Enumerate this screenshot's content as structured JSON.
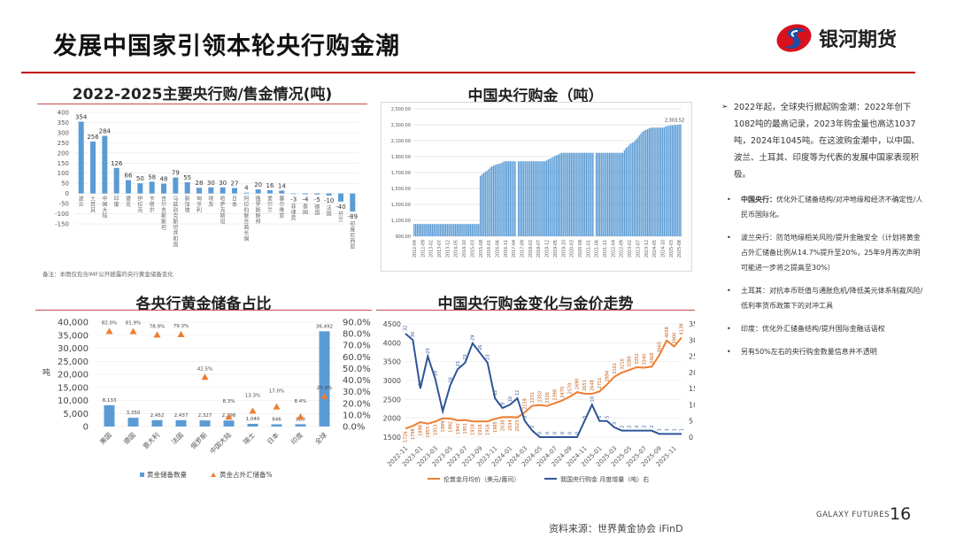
{
  "header": {
    "title": "发展中国家引领本轮央行购金潮",
    "logo_text": "银河期货",
    "logo_colors": [
      "#d7121d",
      "#1d4fa3"
    ]
  },
  "charts": {
    "c1_title": "2022-2025主要央行购/售金情况(吨)",
    "c1_note": "备注：本图仅包含IMF公开披露的央行黄金储备变化",
    "c2_title": "中国央行购金（吨）",
    "c3_title": "各央行黄金储备占比",
    "c4_title": "中国央行购金变化与金价走势"
  },
  "chart_data": [
    {
      "type": "bar",
      "title": "2022-2025主要央行购/售金情况(吨)",
      "categories": [
        "波兰",
        "土耳其",
        "中国大陆",
        "印度",
        "捷克",
        "伊拉克",
        "卡塔尔",
        "吉尔吉斯斯坦",
        "乌兹别克斯坦共和国",
        "新加坡",
        "匈牙利",
        "埃及",
        "哈萨克斯坦",
        "日本",
        "阿拉伯联合酋长国",
        "俄罗斯联邦",
        "爱尔兰",
        "塞尔维亚",
        "菲律宾",
        "泰国",
        "德国",
        "法国",
        "芬兰",
        "印度尼西亚"
      ],
      "values": [
        354,
        256,
        284,
        126,
        66,
        50,
        58,
        48,
        79,
        55,
        28,
        30,
        30,
        27,
        4,
        20,
        16,
        14,
        -3,
        -4,
        -5,
        -10,
        -40,
        -89
      ],
      "ylim": [
        -150,
        400
      ],
      "yticks": [
        -150,
        -100,
        -50,
        0,
        50,
        100,
        150,
        200,
        250,
        300,
        350,
        400
      ],
      "grid": true,
      "color": "#5b9bd5"
    },
    {
      "type": "bar",
      "title": "中国央行购金（吨）",
      "x_start": "2012-04",
      "x_end": "2025-09",
      "xtick_labels": [
        "2012-04",
        "2012-09",
        "2013-02",
        "2013-07",
        "2013-12",
        "2014-05",
        "2014-10",
        "2015-03",
        "2015-08",
        "2016-01",
        "2016-06",
        "2016-11",
        "2017-04",
        "2017-09",
        "2018-02",
        "2018-07",
        "2018-12",
        "2019-05",
        "2019-10",
        "2020-03",
        "2020-08",
        "2021-01",
        "2021-06",
        "2021-11",
        "2022-04",
        "2022-09",
        "2023-02",
        "2023-07",
        "2023-12",
        "2024-05",
        "2024-10",
        "2025-03",
        "2025-08"
      ],
      "values": [
        1054,
        1054,
        1054,
        1054,
        1054,
        1054,
        1054,
        1054,
        1054,
        1054,
        1054,
        1054,
        1054,
        1054,
        1054,
        1054,
        1054,
        1054,
        1054,
        1054,
        1054,
        1054,
        1054,
        1054,
        1054,
        1054,
        1054,
        1054,
        1054,
        1054,
        1054,
        1054,
        1054,
        1054,
        1054,
        1054,
        1054,
        1054,
        1054,
        1054,
        1658,
        1677,
        1694,
        1709,
        1722,
        1743,
        1762,
        1778,
        1788,
        1797,
        1805,
        1808,
        1814,
        1823,
        1838,
        1842,
        1842,
        1842,
        1842,
        1842,
        1842,
        1842,
        null,
        1842,
        1842,
        1842,
        1842,
        1842,
        1842,
        1842,
        1842,
        1842,
        1842,
        1842,
        1842,
        1842,
        1842,
        1842,
        1842,
        1842,
        1852,
        1864,
        1874,
        1885,
        1895,
        1909,
        1916,
        1926,
        1936,
        1948,
        1948,
        1948,
        1948,
        1948,
        1948,
        1948,
        1948,
        1948,
        1948,
        1948,
        1948,
        1948,
        1948,
        1948,
        1948,
        1948,
        1948,
        1948,
        1948,
        null,
        1948,
        1948,
        1948,
        1948,
        1948,
        1948,
        1948,
        1948,
        1948,
        1948,
        1948,
        1948,
        1948,
        1948,
        1948,
        1948,
        1948,
        1980,
        2010,
        2025,
        2050,
        2068,
        2076,
        2092,
        2113,
        2136,
        2165,
        2191,
        2215,
        2227,
        2235,
        2245,
        2257,
        2262,
        2264,
        2264,
        2264,
        2264,
        2264,
        2264,
        2264,
        2269,
        2280,
        2285,
        2290,
        2292,
        2294,
        2296,
        2298,
        2299,
        2302,
        2303.52
      ],
      "last_label": "2,303.52",
      "ylim": [
        900,
        2500
      ],
      "yticks": [
        "900.00",
        "1,100.00",
        "1,300.00",
        "1,500.00",
        "1,700.00",
        "1,900.00",
        "2,100.00",
        "2,300.00",
        "2,500.00"
      ],
      "grid": true,
      "color": "#5b9bd5"
    },
    {
      "type": "bar+scatter",
      "title": "各央行黄金储备占比",
      "categories": [
        "美国",
        "德国",
        "意大利",
        "法国",
        "俄罗斯",
        "中国大陆",
        "瑞士",
        "日本",
        "印度",
        "全球"
      ],
      "series": [
        {
          "name": "黄金储备数量",
          "axis": "left",
          "values": [
            8133,
            3350,
            2452,
            2437,
            2327,
            2298,
            1040,
            846,
            880,
            36492
          ],
          "labels": [
            "8,133",
            "3,350",
            "2,452",
            "2,437",
            "2,327",
            "2,298",
            "1,040",
            "846",
            "880",
            "36,492"
          ],
          "color": "#5b9bd5"
        },
        {
          "name": "黄金占外汇储备%",
          "axis": "right",
          "values": [
            82.0,
            81.9,
            78.9,
            79.3,
            42.5,
            8.3,
            13.3,
            17.0,
            8.4,
            25.9
          ],
          "labels": [
            "82.0%",
            "81.9%",
            "78.9%",
            "79.3%",
            "42.5%",
            "8.3%",
            "13.3%",
            "17.0%",
            "8.4%",
            "25.9%"
          ],
          "color": "#ed7d31"
        }
      ],
      "ylabel": "吨",
      "ylim": [
        0,
        40000
      ],
      "yticks": [
        "0",
        "5,000",
        "10,000",
        "15,000",
        "20,000",
        "25,000",
        "30,000",
        "35,000",
        "40,000"
      ],
      "y2lim": [
        0,
        90
      ],
      "y2ticks": [
        "0.0%",
        "10.0%",
        "20.0%",
        "30.0%",
        "40.0%",
        "50.0%",
        "60.0%",
        "70.0%",
        "80.0%",
        "90.0%"
      ],
      "legend": "bottom",
      "grid": true
    },
    {
      "type": "line",
      "title": "中国央行购金变化与金价走势",
      "x": [
        "2022-11",
        "2022-12",
        "2023-01",
        "2023-02",
        "2023-03",
        "2023-04",
        "2023-05",
        "2023-06",
        "2023-07",
        "2023-08",
        "2023-09",
        "2023-10",
        "2023-11",
        "2023-12",
        "2024-01",
        "2024-02",
        "2024-03",
        "2024-04",
        "2024-05",
        "2024-06",
        "2024-07",
        "2024-08",
        "2024-09",
        "2024-10",
        "2024-11",
        "2024-12",
        "2025-01",
        "2025-02",
        "2025-03",
        "2025-04",
        "2025-05",
        "2025-06",
        "2025-07",
        "2025-08",
        "2025-09",
        "2025-10",
        "2025-11",
        "2025-12"
      ],
      "xtick_labels": [
        "2022-11",
        "2023-01",
        "2023-03",
        "2023-05",
        "2023-07",
        "2023-09",
        "2023-11",
        "2024-01",
        "2024-03",
        "2024-05",
        "2024-07",
        "2024-09",
        "2024-11",
        "2025-01",
        "2025-03",
        "2025-05",
        "2025-07",
        "2025-09",
        "2025-11"
      ],
      "series": [
        {
          "name": "伦敦金月均价（美元/盎司）",
          "axis": "left",
          "color": "#ed7d31",
          "values": [
            1726,
            1798,
            1898,
            1855,
            1913,
            1999,
            1992,
            1942,
            1951,
            1918,
            1916,
            1916,
            1985,
            2030,
            2034,
            2023,
            2159,
            2331,
            2350,
            2326,
            2398,
            2470,
            2570,
            2690,
            2651,
            2648,
            2711,
            2894,
            3101,
            3210,
            3280,
            3352,
            3340,
            3368,
            3665,
            4058,
            3900,
            4139
          ]
        },
        {
          "name": "我国央行购金 月度增量（吨）右",
          "axis": "right",
          "color": "#2f5597",
          "values": [
            32,
            30,
            15,
            25,
            18,
            8,
            16,
            21,
            23,
            29,
            26,
            23,
            12,
            9,
            10,
            12,
            5,
            2,
            0,
            0,
            0,
            0,
            0,
            0,
            5,
            10,
            5,
            5,
            3,
            2,
            2,
            2,
            2,
            2,
            1,
            1,
            1,
            1
          ]
        }
      ],
      "ylim": [
        1500,
        4500
      ],
      "yticks": [
        1500,
        2000,
        2500,
        3000,
        3500,
        4000,
        4500
      ],
      "y2lim": [
        0,
        35
      ],
      "y2ticks": [
        0,
        5,
        10,
        15,
        20,
        25,
        30,
        35
      ],
      "legend": "bottom",
      "grid": true
    }
  ],
  "bullets": {
    "lead": "2022年起，全球央行掀起购金潮：2022年创下1082吨的最高记录，2023年购金量也高达1037吨，2024年1045吨。在这波购金潮中，以中国、波兰、土耳其、印度等为代表的发展中国家表现积极。",
    "items": [
      {
        "label": "中国央行：",
        "text": "优化外汇储备结构/对冲地缘和经济不确定性/人民币国际化。"
      },
      {
        "label": "",
        "text": "波兰央行：防范地缘相关风险/提升金融安全（计划将黄金占外汇储备比例从14.7%提升至20%，25年9月再次声明可能进一步将之提高至30%）"
      },
      {
        "label": "",
        "text": "土耳其：对抗本币贬值与通胀危机/降低美元体系制裁风险/低利率货币政策下的对冲工具"
      },
      {
        "label": "",
        "text": "印度：优化外汇储备结构/提升国际金融话语权"
      },
      {
        "label": "",
        "text": "另有50%左右的央行购金数量信息并不透明"
      }
    ]
  },
  "footer": {
    "source": "资料来源：世界黄金协会 iFinD",
    "brand": "GALAXY FUTURES",
    "page": "16"
  }
}
